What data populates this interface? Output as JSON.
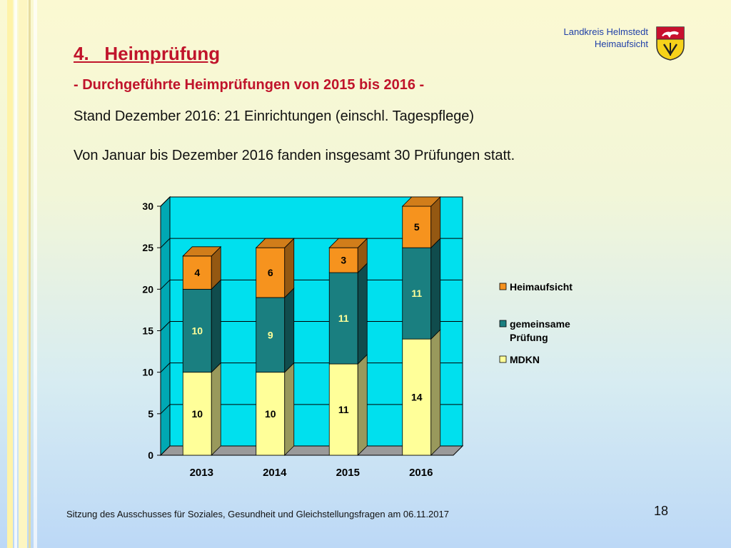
{
  "header": {
    "org_line1": "Landkreis Helmstedt",
    "org_line2": "Heimaufsicht",
    "title": "4.   Heimprüfung",
    "subtitle": "- Durchgeführte Heimprüfungen  von 2015 bis 2016 -",
    "line1": "Stand Dezember 2016: 21 Einrichtungen (einschl. Tagespflege)",
    "line2": "Von Januar bis Dezember 2016 fanden insgesamt 30 Prüfungen statt."
  },
  "chart_data": {
    "type": "bar",
    "stacked": true,
    "categories": [
      "2013",
      "2014",
      "2015",
      "2016"
    ],
    "series": [
      {
        "name": "MDKN",
        "values": [
          10,
          10,
          11,
          14
        ],
        "color": "#ffff99"
      },
      {
        "name": "gemeinsame Prüfung",
        "values": [
          10,
          9,
          11,
          11
        ],
        "color": "#1a7f80"
      },
      {
        "name": "Heimaufsicht",
        "values": [
          4,
          6,
          3,
          5
        ],
        "color": "#f6931e"
      }
    ],
    "legend_order": [
      "Heimaufsicht",
      "gemeinsame Prüfung",
      "MDKN"
    ],
    "legend_position": "right",
    "ylim": [
      0,
      30
    ],
    "yticks": [
      "0",
      "5",
      "10",
      "15",
      "20",
      "25",
      "30"
    ],
    "plot_background": "#00e0ee",
    "grid": true
  },
  "footer": {
    "text": "Sitzung des Ausschusses für Soziales, Gesundheit und Gleichstellungsfragen am 06.11.2017",
    "page": "18"
  }
}
